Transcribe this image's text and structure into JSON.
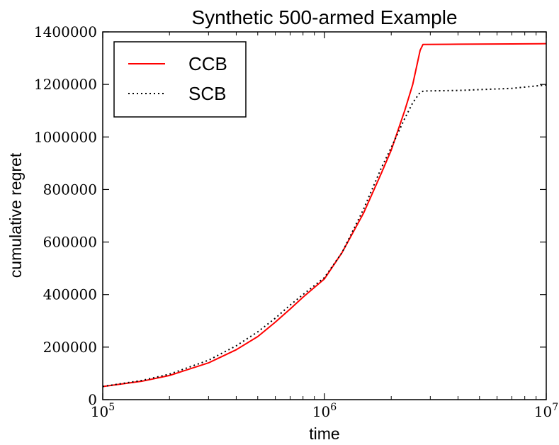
{
  "chart_data": {
    "type": "line",
    "title": "Synthetic 500-armed Example",
    "xlabel": "time",
    "ylabel": "cumulative regret",
    "x_scale": "log",
    "xlim": [
      100000,
      10000000
    ],
    "ylim": [
      0,
      1400000
    ],
    "x_ticks": [
      {
        "value": 100000,
        "base": "10",
        "exp": "5"
      },
      {
        "value": 1000000,
        "base": "10",
        "exp": "6"
      },
      {
        "value": 10000000,
        "base": "10",
        "exp": "7"
      }
    ],
    "y_ticks": [
      {
        "value": 0,
        "label": "0"
      },
      {
        "value": 200000,
        "label": "200000"
      },
      {
        "value": 400000,
        "label": "400000"
      },
      {
        "value": 600000,
        "label": "600000"
      },
      {
        "value": 800000,
        "label": "800000"
      },
      {
        "value": 1000000,
        "label": "1000000"
      },
      {
        "value": 1200000,
        "label": "1200000"
      },
      {
        "value": 1400000,
        "label": "1400000"
      }
    ],
    "grid": false,
    "legend_position": "top-left",
    "series": [
      {
        "name": "CCB",
        "color": "#ff0000",
        "style": "solid",
        "points": [
          [
            100000,
            50000
          ],
          [
            150000,
            70000
          ],
          [
            200000,
            92000
          ],
          [
            300000,
            140000
          ],
          [
            400000,
            190000
          ],
          [
            500000,
            240000
          ],
          [
            600000,
            295000
          ],
          [
            700000,
            345000
          ],
          [
            800000,
            390000
          ],
          [
            1000000,
            460000
          ],
          [
            1200000,
            560000
          ],
          [
            1500000,
            710000
          ],
          [
            1800000,
            860000
          ],
          [
            2000000,
            950000
          ],
          [
            2300000,
            1100000
          ],
          [
            2500000,
            1200000
          ],
          [
            2700000,
            1330000
          ],
          [
            2780000,
            1352000
          ],
          [
            4000000,
            1353000
          ],
          [
            7000000,
            1354000
          ],
          [
            10000000,
            1355000
          ]
        ]
      },
      {
        "name": "SCB",
        "color": "#000000",
        "style": "dotted",
        "points": [
          [
            100000,
            50000
          ],
          [
            150000,
            73000
          ],
          [
            200000,
            97000
          ],
          [
            300000,
            150000
          ],
          [
            400000,
            205000
          ],
          [
            500000,
            258000
          ],
          [
            600000,
            310000
          ],
          [
            700000,
            360000
          ],
          [
            800000,
            400000
          ],
          [
            1000000,
            465000
          ],
          [
            1200000,
            560000
          ],
          [
            1500000,
            725000
          ],
          [
            1800000,
            880000
          ],
          [
            2000000,
            960000
          ],
          [
            2300000,
            1070000
          ],
          [
            2500000,
            1130000
          ],
          [
            2700000,
            1170000
          ],
          [
            2800000,
            1175000
          ],
          [
            4000000,
            1177000
          ],
          [
            7000000,
            1185000
          ],
          [
            10000000,
            1198000
          ]
        ]
      }
    ]
  }
}
